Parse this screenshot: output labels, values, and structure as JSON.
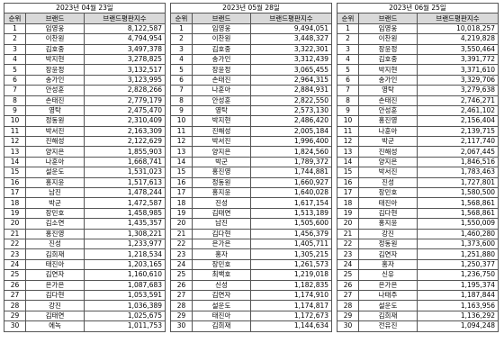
{
  "tables": [
    {
      "date": "2023년 04월 23일",
      "headers": [
        "순위",
        "브랜드",
        "브랜드평판지수"
      ],
      "rows": [
        [
          1,
          "임영웅",
          "8,122,587"
        ],
        [
          2,
          "이찬원",
          "4,794,954"
        ],
        [
          3,
          "김호중",
          "3,497,378"
        ],
        [
          4,
          "박지현",
          "3,278,825"
        ],
        [
          5,
          "장윤정",
          "3,132,517"
        ],
        [
          6,
          "송가인",
          "3,123,995"
        ],
        [
          7,
          "안성훈",
          "2,828,266"
        ],
        [
          8,
          "손태진",
          "2,779,179"
        ],
        [
          9,
          "영탁",
          "2,475,470"
        ],
        [
          10,
          "정동원",
          "2,310,409"
        ],
        [
          11,
          "박서진",
          "2,163,309"
        ],
        [
          12,
          "진해성",
          "2,122,629"
        ],
        [
          13,
          "양지은",
          "1,855,903"
        ],
        [
          14,
          "나훈아",
          "1,668,741"
        ],
        [
          15,
          "설운도",
          "1,531,023"
        ],
        [
          16,
          "홍지윤",
          "1,517,613"
        ],
        [
          17,
          "남진",
          "1,478,244"
        ],
        [
          18,
          "박군",
          "1,472,587"
        ],
        [
          19,
          "장민호",
          "1,458,985"
        ],
        [
          20,
          "김소연",
          "1,435,357"
        ],
        [
          21,
          "홍진영",
          "1,308,221"
        ],
        [
          22,
          "진성",
          "1,233,977"
        ],
        [
          23,
          "김희재",
          "1,218,534"
        ],
        [
          24,
          "태진아",
          "1,203,165"
        ],
        [
          25,
          "김연자",
          "1,160,610"
        ],
        [
          26,
          "은가은",
          "1,087,683"
        ],
        [
          27,
          "김다현",
          "1,053,591"
        ],
        [
          28,
          "강진",
          "1,036,389"
        ],
        [
          29,
          "김태연",
          "1,025,675"
        ],
        [
          30,
          "에녹",
          "1,011,753"
        ]
      ]
    },
    {
      "date": "2023년 05월 28일",
      "headers": [
        "순위",
        "브랜드",
        "브랜드평판지수"
      ],
      "rows": [
        [
          1,
          "임영웅",
          "9,494,051"
        ],
        [
          2,
          "이찬원",
          "3,448,327"
        ],
        [
          3,
          "김호중",
          "3,322,301"
        ],
        [
          4,
          "송가인",
          "3,312,439"
        ],
        [
          5,
          "장윤정",
          "3,065,455"
        ],
        [
          6,
          "손태진",
          "2,964,315"
        ],
        [
          7,
          "나훈아",
          "2,884,931"
        ],
        [
          8,
          "안성훈",
          "2,822,550"
        ],
        [
          9,
          "영탁",
          "2,573,130"
        ],
        [
          10,
          "박지현",
          "2,486,420"
        ],
        [
          11,
          "진해성",
          "2,005,184"
        ],
        [
          12,
          "박서진",
          "1,996,400"
        ],
        [
          13,
          "양지은",
          "1,824,560"
        ],
        [
          14,
          "박군",
          "1,789,372"
        ],
        [
          15,
          "홍진영",
          "1,744,881"
        ],
        [
          16,
          "정동원",
          "1,660,927"
        ],
        [
          17,
          "홍지윤",
          "1,640,028"
        ],
        [
          18,
          "진성",
          "1,617,154"
        ],
        [
          19,
          "김태연",
          "1,513,189"
        ],
        [
          20,
          "남진",
          "1,505,600"
        ],
        [
          21,
          "김다현",
          "1,456,379"
        ],
        [
          22,
          "은가은",
          "1,405,711"
        ],
        [
          23,
          "홍자",
          "1,305,215"
        ],
        [
          24,
          "장민호",
          "1,261,573"
        ],
        [
          25,
          "최백호",
          "1,219,018"
        ],
        [
          26,
          "신성",
          "1,182,835"
        ],
        [
          27,
          "김연자",
          "1,174,910"
        ],
        [
          28,
          "설운도",
          "1,174,817"
        ],
        [
          29,
          "태진아",
          "1,172,673"
        ],
        [
          30,
          "김희재",
          "1,144,634"
        ]
      ]
    },
    {
      "date": "2023년 06월 25일",
      "headers": [
        "순위",
        "브랜드",
        "브랜드평판지수"
      ],
      "rows": [
        [
          1,
          "임영웅",
          "10,018,257"
        ],
        [
          2,
          "이찬원",
          "4,219,828"
        ],
        [
          3,
          "장윤정",
          "3,550,464"
        ],
        [
          4,
          "김호중",
          "3,391,772"
        ],
        [
          5,
          "박지현",
          "3,371,610"
        ],
        [
          6,
          "송가인",
          "3,329,706"
        ],
        [
          7,
          "영탁",
          "3,279,638"
        ],
        [
          8,
          "손태진",
          "2,746,271"
        ],
        [
          9,
          "안성훈",
          "2,461,102"
        ],
        [
          10,
          "홍진영",
          "2,156,404"
        ],
        [
          11,
          "나훈아",
          "2,139,715"
        ],
        [
          12,
          "박군",
          "2,117,740"
        ],
        [
          13,
          "진해성",
          "2,067,445"
        ],
        [
          14,
          "양지은",
          "1,846,516"
        ],
        [
          15,
          "박서진",
          "1,783,463"
        ],
        [
          16,
          "진성",
          "1,727,801"
        ],
        [
          17,
          "장민호",
          "1,580,500"
        ],
        [
          18,
          "태진아",
          "1,568,861"
        ],
        [
          19,
          "김다현",
          "1,568,861"
        ],
        [
          20,
          "홍지윤",
          "1,550,009"
        ],
        [
          21,
          "강진",
          "1,460,280"
        ],
        [
          22,
          "정동원",
          "1,373,600"
        ],
        [
          23,
          "김연자",
          "1,251,880"
        ],
        [
          24,
          "홍자",
          "1,250,377"
        ],
        [
          25,
          "신유",
          "1,236,750"
        ],
        [
          26,
          "은가은",
          "1,195,374"
        ],
        [
          27,
          "나태주",
          "1,187,844"
        ],
        [
          28,
          "설운도",
          "1,163,956"
        ],
        [
          29,
          "김희재",
          "1,136,292"
        ],
        [
          30,
          "전유진",
          "1,094,248"
        ]
      ]
    }
  ]
}
